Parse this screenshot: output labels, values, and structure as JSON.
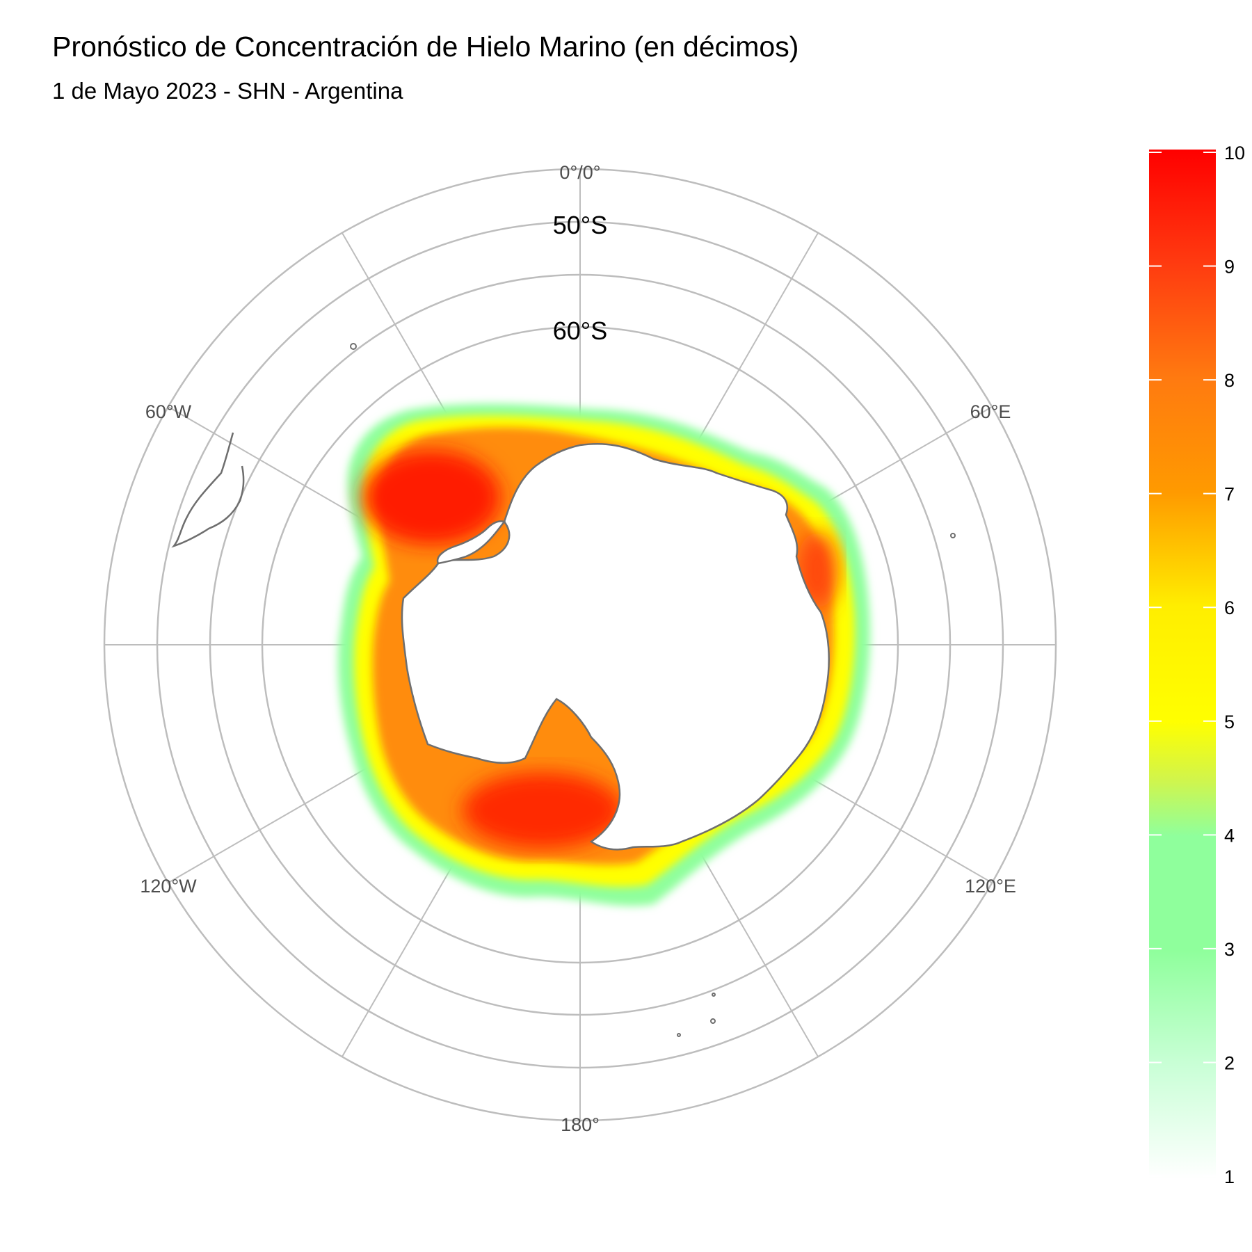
{
  "title": "Pronóstico de Concentración de Hielo Marino (en décimos)",
  "subtitle": "1 de Mayo 2023 - SHN - Argentina",
  "map": {
    "projection": "polar stereographic, south pole",
    "lon_labels": {
      "top": "0°/0°",
      "right_upper": "60°E",
      "right_lower": "120°E",
      "bottom": "180°",
      "left_lower": "120°W",
      "left_upper": "60°W"
    },
    "lat_labels": [
      "50°S",
      "60°S"
    ],
    "graticule_color": "#bdbdbd",
    "coast_color": "#6e6e6e",
    "ice_extent": "circumpolar ring around Antarctica; highest concentrations (9-10) in the Weddell Sea and the Ross Sea"
  },
  "legend": {
    "min": 1,
    "max": 10,
    "ticks": [
      "10",
      "9",
      "8",
      "7",
      "6",
      "5",
      "4",
      "3",
      "2",
      "1"
    ],
    "gradient": [
      {
        "value": 1,
        "color": "#ffffff"
      },
      {
        "value": 2,
        "color": "#c9ffd6"
      },
      {
        "value": 3,
        "color": "#8fff9c"
      },
      {
        "value": 4,
        "color": "#8fff9c"
      },
      {
        "value": 4.5,
        "color": "#d2f54a"
      },
      {
        "value": 5,
        "color": "#ffff00"
      },
      {
        "value": 6,
        "color": "#ffee00"
      },
      {
        "value": 7,
        "color": "#ff9a00"
      },
      {
        "value": 8,
        "color": "#ff7a10"
      },
      {
        "value": 9,
        "color": "#ff3b10"
      },
      {
        "value": 10,
        "color": "#ff0000"
      }
    ]
  }
}
